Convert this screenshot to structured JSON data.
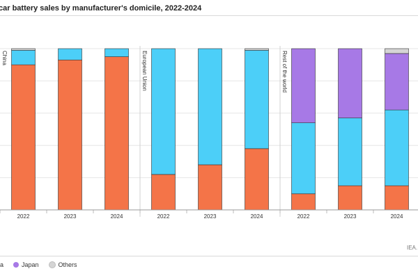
{
  "title": "car battery sales by manufacturer's domicile, 2022-2024",
  "source": "IEA. I",
  "legend": [
    {
      "label": "rea",
      "color": "#F47448"
    },
    {
      "label": "Japan",
      "color": "#A779E6"
    },
    {
      "label": "Others",
      "color": "#D5D5D5"
    }
  ],
  "chart_data": {
    "type": "bar",
    "stacked": true,
    "normalized": true,
    "ylim": [
      0,
      100
    ],
    "ylabel": "",
    "xlabel": "",
    "grid": true,
    "groups": [
      {
        "label": "China",
        "categories": [
          "2022",
          "2023",
          "2024"
        ]
      },
      {
        "label": "European Union",
        "categories": [
          "2022",
          "2023",
          "2024"
        ]
      },
      {
        "label": "Rest of the world",
        "categories": [
          "2022",
          "2023",
          "2024"
        ]
      }
    ],
    "series": [
      {
        "color": "#F47448",
        "values": [
          90,
          93,
          95,
          22,
          28,
          38,
          10,
          15,
          15
        ]
      },
      {
        "color": "#4CCFF8",
        "values": [
          9,
          7,
          5,
          78,
          72,
          61,
          44,
          42,
          47
        ]
      },
      {
        "name": "Japan",
        "color": "#A779E6",
        "values": [
          0,
          0,
          0,
          0,
          0,
          0,
          46,
          43,
          35
        ]
      },
      {
        "name": "Others",
        "color": "#D5D5D5",
        "values": [
          1,
          0,
          0,
          0,
          0,
          1,
          0,
          0,
          3
        ]
      }
    ]
  }
}
